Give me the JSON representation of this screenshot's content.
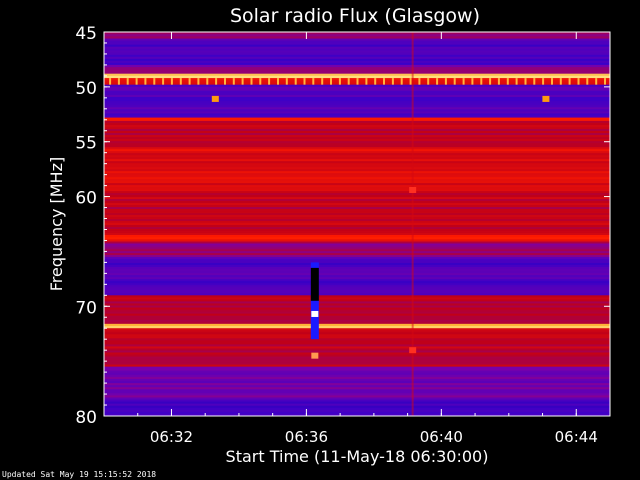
{
  "chart_data": {
    "type": "heatmap",
    "title": "Solar radio Flux (Glasgow)",
    "xlabel": "Start Time (11-May-18 06:30:00)",
    "ylabel": "Frequency [MHz]",
    "x_unit": "minutes after 06:30",
    "xlim": [
      0,
      15
    ],
    "ylim": [
      45,
      80
    ],
    "y_inverted": true,
    "x_ticks": [
      {
        "value": 2,
        "label": "06:32"
      },
      {
        "value": 6,
        "label": "06:36"
      },
      {
        "value": 10,
        "label": "06:40"
      },
      {
        "value": 14,
        "label": "06:44"
      }
    ],
    "y_ticks": [
      {
        "value": 45,
        "label": "45"
      },
      {
        "value": 50,
        "label": "50"
      },
      {
        "value": 55,
        "label": "55"
      },
      {
        "value": 60,
        "label": "60"
      },
      {
        "value": 70,
        "label": "70"
      },
      {
        "value": 80,
        "label": "80"
      }
    ],
    "colormap": [
      "#12005a",
      "#3a00c8",
      "#7a00a8",
      "#c00018",
      "#ff1a00",
      "#ff9a10",
      "#ffffb0"
    ],
    "frequency_bands": [
      {
        "from": 45.0,
        "to": 45.6,
        "level": 0.4
      },
      {
        "from": 45.6,
        "to": 48.0,
        "level": 0.2
      },
      {
        "from": 48.0,
        "to": 48.8,
        "level": 0.35
      },
      {
        "from": 48.8,
        "to": 49.2,
        "level": 0.95
      },
      {
        "from": 49.2,
        "to": 49.8,
        "level": 0.6
      },
      {
        "from": 49.8,
        "to": 52.8,
        "level": 0.22
      },
      {
        "from": 52.8,
        "to": 53.1,
        "level": 0.62
      },
      {
        "from": 53.1,
        "to": 55.5,
        "level": 0.5
      },
      {
        "from": 55.5,
        "to": 59.5,
        "level": 0.58
      },
      {
        "from": 59.5,
        "to": 63.5,
        "level": 0.5
      },
      {
        "from": 63.5,
        "to": 64.1,
        "level": 0.65
      },
      {
        "from": 64.1,
        "to": 65.5,
        "level": 0.4
      },
      {
        "from": 65.5,
        "to": 69.0,
        "level": 0.22
      },
      {
        "from": 69.0,
        "to": 71.6,
        "level": 0.48
      },
      {
        "from": 71.6,
        "to": 72.0,
        "level": 0.92
      },
      {
        "from": 72.0,
        "to": 75.5,
        "level": 0.5
      },
      {
        "from": 75.5,
        "to": 78.5,
        "level": 0.3
      },
      {
        "from": 78.5,
        "to": 80.0,
        "level": 0.18
      }
    ],
    "features": [
      {
        "type": "vertical-column",
        "x": 6.25,
        "y_from": 66.0,
        "y_to": 73.0,
        "color": "#1a1aff"
      },
      {
        "type": "vertical-column",
        "x": 6.25,
        "y_from": 66.5,
        "y_to": 69.5,
        "color": "#000000"
      },
      {
        "type": "spot",
        "x": 6.25,
        "y": 70.7,
        "color": "#ffffff"
      },
      {
        "type": "spot",
        "x": 6.25,
        "y": 74.5,
        "color": "#ff9a50"
      },
      {
        "type": "spot",
        "x": 9.15,
        "y": 59.4,
        "color": "#ff3020"
      },
      {
        "type": "spot",
        "x": 9.15,
        "y": 74.0,
        "color": "#ff3020"
      },
      {
        "type": "spot",
        "x": 3.3,
        "y": 51.1,
        "color": "#ff9a10"
      },
      {
        "type": "spot",
        "x": 13.1,
        "y": 51.1,
        "color": "#ff9a10"
      }
    ]
  },
  "footer": "Updated Sat May 19 15:15:52 2018"
}
